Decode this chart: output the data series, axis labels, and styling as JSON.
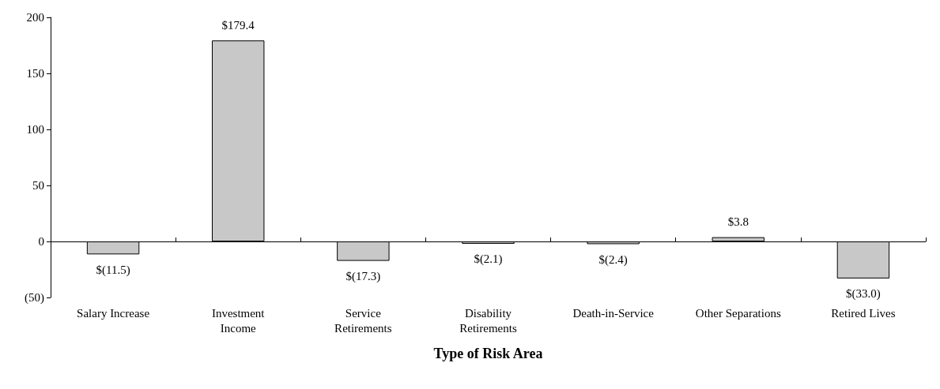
{
  "chart_data": {
    "type": "bar",
    "xlabel": "Type of Risk Area",
    "categories": [
      "Salary Increase",
      "Investment\nIncome",
      "Service\nRetirements",
      "Disability\nRetirements",
      "Death-in-Service",
      "Other Separations",
      "Retired Lives"
    ],
    "values": [
      -11.5,
      179.4,
      -17.3,
      -2.1,
      -2.4,
      3.8,
      -33.0
    ],
    "value_labels": [
      "$(11.5)",
      "$179.4",
      "$(17.3)",
      "$(2.1)",
      "$(2.4)",
      "$3.8",
      "$(33.0)"
    ],
    "color": "#c8c8c8",
    "ylim": [
      -50,
      200
    ],
    "yticks": [
      {
        "value": -50,
        "label": "(50)"
      },
      0,
      50,
      100,
      150,
      200
    ]
  }
}
